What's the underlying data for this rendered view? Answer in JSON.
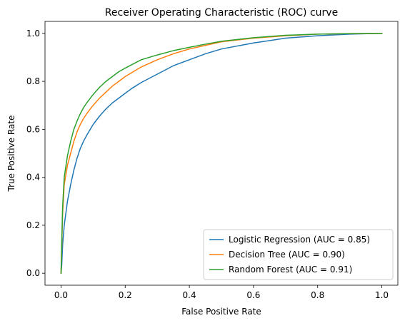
{
  "chart_data": {
    "type": "line",
    "title": "Receiver Operating Characteristic (ROC) curve",
    "xlabel": "False Positive Rate",
    "ylabel": "True Positive Rate",
    "xlim": [
      -0.05,
      1.05
    ],
    "ylim": [
      -0.05,
      1.05
    ],
    "xticks": [
      0.0,
      0.2,
      0.4,
      0.6,
      0.8,
      1.0
    ],
    "yticks": [
      0.0,
      0.2,
      0.4,
      0.6,
      0.8,
      1.0
    ],
    "grid": false,
    "legend_position": "lower-right",
    "series": [
      {
        "name": "Logistic Regression (AUC = 0.85)",
        "color": "#1f77b4",
        "x": [
          0,
          0.002,
          0.005,
          0.01,
          0.02,
          0.03,
          0.04,
          0.05,
          0.06,
          0.07,
          0.08,
          0.1,
          0.12,
          0.14,
          0.16,
          0.18,
          0.2,
          0.22,
          0.25,
          0.3,
          0.35,
          0.4,
          0.45,
          0.5,
          0.6,
          0.7,
          0.8,
          0.9,
          1.0
        ],
        "y": [
          0,
          0.03,
          0.12,
          0.2,
          0.3,
          0.37,
          0.43,
          0.48,
          0.52,
          0.55,
          0.575,
          0.62,
          0.655,
          0.685,
          0.71,
          0.73,
          0.75,
          0.77,
          0.795,
          0.83,
          0.865,
          0.89,
          0.915,
          0.935,
          0.96,
          0.98,
          0.99,
          0.997,
          1.0
        ]
      },
      {
        "name": "Decision Tree (AUC = 0.90)",
        "color": "#ff7f0e",
        "x": [
          0,
          0.002,
          0.005,
          0.01,
          0.02,
          0.03,
          0.04,
          0.05,
          0.06,
          0.07,
          0.08,
          0.1,
          0.12,
          0.14,
          0.16,
          0.18,
          0.2,
          0.25,
          0.3,
          0.35,
          0.4,
          0.45,
          0.5,
          0.6,
          0.7,
          0.8,
          0.9,
          1.0
        ],
        "y": [
          0,
          0.1,
          0.25,
          0.37,
          0.45,
          0.5,
          0.55,
          0.59,
          0.62,
          0.645,
          0.665,
          0.7,
          0.73,
          0.755,
          0.78,
          0.8,
          0.82,
          0.86,
          0.89,
          0.915,
          0.935,
          0.95,
          0.965,
          0.98,
          0.99,
          0.997,
          0.999,
          1.0
        ]
      },
      {
        "name": "Random Forest (AUC = 0.91)",
        "color": "#2ca02c",
        "x": [
          0,
          0.002,
          0.005,
          0.01,
          0.02,
          0.03,
          0.04,
          0.05,
          0.06,
          0.07,
          0.08,
          0.1,
          0.12,
          0.14,
          0.16,
          0.18,
          0.2,
          0.25,
          0.3,
          0.35,
          0.4,
          0.45,
          0.5,
          0.6,
          0.7,
          0.8,
          0.9,
          1.0
        ],
        "y": [
          0,
          0.12,
          0.28,
          0.4,
          0.49,
          0.55,
          0.6,
          0.635,
          0.665,
          0.69,
          0.71,
          0.745,
          0.775,
          0.8,
          0.82,
          0.84,
          0.855,
          0.89,
          0.91,
          0.928,
          0.942,
          0.955,
          0.967,
          0.982,
          0.992,
          0.997,
          0.999,
          1.0
        ]
      }
    ]
  }
}
